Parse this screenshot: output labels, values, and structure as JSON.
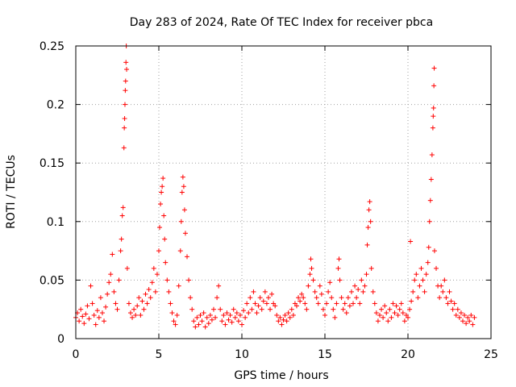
{
  "chart_data": {
    "type": "scatter",
    "title": "Day 283 of 2024, Rate Of TEC Index for receiver pbca",
    "xlabel": "GPS time / hours",
    "ylabel": "ROTI / TECUs",
    "xlim": [
      0,
      25
    ],
    "ylim": [
      0,
      0.25
    ],
    "x_ticks": [
      0,
      5,
      10,
      15,
      20,
      25
    ],
    "y_ticks": [
      0,
      0.05,
      0.1,
      0.15,
      0.2,
      0.25
    ],
    "x_tick_labels": [
      "0",
      "5",
      "10",
      "15",
      "20",
      "25"
    ],
    "y_tick_labels": [
      "0",
      "0.05",
      "0.1",
      "0.15",
      "0.2",
      "0.25"
    ],
    "grid": true,
    "marker": "plus",
    "color": "#ff0000",
    "series": [
      {
        "name": "ROTI",
        "points": [
          [
            0.0,
            0.018
          ],
          [
            0.1,
            0.022
          ],
          [
            0.2,
            0.015
          ],
          [
            0.3,
            0.025
          ],
          [
            0.4,
            0.019
          ],
          [
            0.5,
            0.013
          ],
          [
            0.6,
            0.021
          ],
          [
            0.7,
            0.028
          ],
          [
            0.8,
            0.017
          ],
          [
            0.9,
            0.045
          ],
          [
            1.0,
            0.03
          ],
          [
            1.1,
            0.02
          ],
          [
            1.2,
            0.012
          ],
          [
            1.3,
            0.024
          ],
          [
            1.4,
            0.018
          ],
          [
            1.5,
            0.035
          ],
          [
            1.6,
            0.022
          ],
          [
            1.7,
            0.015
          ],
          [
            1.8,
            0.027
          ],
          [
            1.9,
            0.038
          ],
          [
            2.0,
            0.048
          ],
          [
            2.1,
            0.055
          ],
          [
            2.2,
            0.072
          ],
          [
            2.3,
            0.04
          ],
          [
            2.4,
            0.03
          ],
          [
            2.5,
            0.025
          ],
          [
            2.6,
            0.05
          ],
          [
            2.7,
            0.075
          ],
          [
            2.75,
            0.085
          ],
          [
            2.8,
            0.105
          ],
          [
            2.85,
            0.112
          ],
          [
            2.9,
            0.163
          ],
          [
            2.92,
            0.18
          ],
          [
            2.94,
            0.188
          ],
          [
            2.96,
            0.2
          ],
          [
            2.98,
            0.212
          ],
          [
            3.0,
            0.22
          ],
          [
            3.02,
            0.236
          ],
          [
            3.04,
            0.25
          ],
          [
            3.06,
            0.23
          ],
          [
            3.1,
            0.06
          ],
          [
            3.2,
            0.03
          ],
          [
            3.3,
            0.022
          ],
          [
            3.4,
            0.018
          ],
          [
            3.5,
            0.025
          ],
          [
            3.6,
            0.02
          ],
          [
            3.7,
            0.028
          ],
          [
            3.8,
            0.035
          ],
          [
            3.9,
            0.02
          ],
          [
            4.0,
            0.032
          ],
          [
            4.1,
            0.025
          ],
          [
            4.2,
            0.038
          ],
          [
            4.3,
            0.03
          ],
          [
            4.4,
            0.042
          ],
          [
            4.5,
            0.035
          ],
          [
            4.6,
            0.048
          ],
          [
            4.7,
            0.06
          ],
          [
            4.8,
            0.04
          ],
          [
            4.9,
            0.055
          ],
          [
            5.0,
            0.075
          ],
          [
            5.05,
            0.095
          ],
          [
            5.1,
            0.115
          ],
          [
            5.15,
            0.125
          ],
          [
            5.2,
            0.13
          ],
          [
            5.25,
            0.137
          ],
          [
            5.3,
            0.105
          ],
          [
            5.35,
            0.085
          ],
          [
            5.4,
            0.065
          ],
          [
            5.5,
            0.05
          ],
          [
            5.6,
            0.04
          ],
          [
            5.7,
            0.03
          ],
          [
            5.8,
            0.022
          ],
          [
            5.9,
            0.015
          ],
          [
            6.0,
            0.012
          ],
          [
            6.1,
            0.02
          ],
          [
            6.2,
            0.045
          ],
          [
            6.3,
            0.075
          ],
          [
            6.35,
            0.1
          ],
          [
            6.4,
            0.125
          ],
          [
            6.45,
            0.138
          ],
          [
            6.5,
            0.13
          ],
          [
            6.55,
            0.11
          ],
          [
            6.6,
            0.09
          ],
          [
            6.7,
            0.07
          ],
          [
            6.8,
            0.05
          ],
          [
            6.9,
            0.035
          ],
          [
            7.0,
            0.025
          ],
          [
            7.1,
            0.015
          ],
          [
            7.2,
            0.01
          ],
          [
            7.3,
            0.018
          ],
          [
            7.4,
            0.012
          ],
          [
            7.5,
            0.02
          ],
          [
            7.6,
            0.015
          ],
          [
            7.7,
            0.022
          ],
          [
            7.8,
            0.01
          ],
          [
            7.9,
            0.018
          ],
          [
            8.0,
            0.013
          ],
          [
            8.1,
            0.02
          ],
          [
            8.2,
            0.016
          ],
          [
            8.3,
            0.025
          ],
          [
            8.4,
            0.018
          ],
          [
            8.5,
            0.035
          ],
          [
            8.6,
            0.045
          ],
          [
            8.7,
            0.025
          ],
          [
            8.8,
            0.015
          ],
          [
            8.9,
            0.02
          ],
          [
            9.0,
            0.012
          ],
          [
            9.1,
            0.022
          ],
          [
            9.2,
            0.016
          ],
          [
            9.3,
            0.02
          ],
          [
            9.4,
            0.014
          ],
          [
            9.5,
            0.025
          ],
          [
            9.6,
            0.018
          ],
          [
            9.7,
            0.022
          ],
          [
            9.8,
            0.015
          ],
          [
            9.9,
            0.02
          ],
          [
            10.0,
            0.012
          ],
          [
            10.1,
            0.024
          ],
          [
            10.2,
            0.018
          ],
          [
            10.3,
            0.03
          ],
          [
            10.4,
            0.022
          ],
          [
            10.5,
            0.035
          ],
          [
            10.6,
            0.025
          ],
          [
            10.7,
            0.04
          ],
          [
            10.8,
            0.03
          ],
          [
            10.9,
            0.022
          ],
          [
            11.0,
            0.028
          ],
          [
            11.1,
            0.035
          ],
          [
            11.2,
            0.025
          ],
          [
            11.3,
            0.032
          ],
          [
            11.4,
            0.04
          ],
          [
            11.5,
            0.03
          ],
          [
            11.6,
            0.035
          ],
          [
            11.7,
            0.025
          ],
          [
            11.8,
            0.038
          ],
          [
            11.9,
            0.03
          ],
          [
            12.0,
            0.028
          ],
          [
            12.1,
            0.02
          ],
          [
            12.2,
            0.015
          ],
          [
            12.3,
            0.018
          ],
          [
            12.4,
            0.012
          ],
          [
            12.5,
            0.016
          ],
          [
            12.6,
            0.02
          ],
          [
            12.7,
            0.015
          ],
          [
            12.8,
            0.022
          ],
          [
            12.9,
            0.018
          ],
          [
            13.0,
            0.025
          ],
          [
            13.1,
            0.02
          ],
          [
            13.2,
            0.03
          ],
          [
            13.3,
            0.028
          ],
          [
            13.4,
            0.035
          ],
          [
            13.5,
            0.032
          ],
          [
            13.6,
            0.038
          ],
          [
            13.7,
            0.035
          ],
          [
            13.8,
            0.03
          ],
          [
            13.9,
            0.025
          ],
          [
            14.0,
            0.045
          ],
          [
            14.1,
            0.055
          ],
          [
            14.15,
            0.068
          ],
          [
            14.2,
            0.06
          ],
          [
            14.3,
            0.05
          ],
          [
            14.4,
            0.04
          ],
          [
            14.5,
            0.035
          ],
          [
            14.6,
            0.03
          ],
          [
            14.7,
            0.045
          ],
          [
            14.8,
            0.038
          ],
          [
            14.9,
            0.025
          ],
          [
            15.0,
            0.02
          ],
          [
            15.1,
            0.03
          ],
          [
            15.2,
            0.04
          ],
          [
            15.3,
            0.048
          ],
          [
            15.4,
            0.035
          ],
          [
            15.5,
            0.025
          ],
          [
            15.6,
            0.018
          ],
          [
            15.7,
            0.03
          ],
          [
            15.8,
            0.06
          ],
          [
            15.85,
            0.068
          ],
          [
            15.9,
            0.05
          ],
          [
            16.0,
            0.035
          ],
          [
            16.1,
            0.025
          ],
          [
            16.2,
            0.03
          ],
          [
            16.3,
            0.022
          ],
          [
            16.4,
            0.035
          ],
          [
            16.5,
            0.028
          ],
          [
            16.6,
            0.04
          ],
          [
            16.7,
            0.03
          ],
          [
            16.8,
            0.045
          ],
          [
            16.9,
            0.035
          ],
          [
            17.0,
            0.042
          ],
          [
            17.1,
            0.03
          ],
          [
            17.2,
            0.05
          ],
          [
            17.3,
            0.04
          ],
          [
            17.4,
            0.045
          ],
          [
            17.5,
            0.055
          ],
          [
            17.55,
            0.08
          ],
          [
            17.6,
            0.095
          ],
          [
            17.65,
            0.11
          ],
          [
            17.7,
            0.117
          ],
          [
            17.75,
            0.1
          ],
          [
            17.8,
            0.06
          ],
          [
            17.9,
            0.04
          ],
          [
            18.0,
            0.03
          ],
          [
            18.1,
            0.022
          ],
          [
            18.2,
            0.015
          ],
          [
            18.3,
            0.02
          ],
          [
            18.4,
            0.025
          ],
          [
            18.5,
            0.018
          ],
          [
            18.6,
            0.028
          ],
          [
            18.7,
            0.022
          ],
          [
            18.8,
            0.015
          ],
          [
            18.9,
            0.025
          ],
          [
            19.0,
            0.018
          ],
          [
            19.1,
            0.03
          ],
          [
            19.2,
            0.022
          ],
          [
            19.3,
            0.028
          ],
          [
            19.4,
            0.02
          ],
          [
            19.5,
            0.025
          ],
          [
            19.6,
            0.03
          ],
          [
            19.7,
            0.022
          ],
          [
            19.8,
            0.015
          ],
          [
            19.9,
            0.02
          ],
          [
            20.0,
            0.018
          ],
          [
            20.1,
            0.025
          ],
          [
            20.15,
            0.083
          ],
          [
            20.2,
            0.032
          ],
          [
            20.3,
            0.04
          ],
          [
            20.4,
            0.05
          ],
          [
            20.5,
            0.055
          ],
          [
            20.6,
            0.035
          ],
          [
            20.7,
            0.045
          ],
          [
            20.8,
            0.06
          ],
          [
            20.9,
            0.05
          ],
          [
            21.0,
            0.04
          ],
          [
            21.1,
            0.055
          ],
          [
            21.2,
            0.065
          ],
          [
            21.25,
            0.078
          ],
          [
            21.3,
            0.1
          ],
          [
            21.35,
            0.118
          ],
          [
            21.4,
            0.136
          ],
          [
            21.45,
            0.157
          ],
          [
            21.5,
            0.18
          ],
          [
            21.52,
            0.19
          ],
          [
            21.54,
            0.197
          ],
          [
            21.56,
            0.216
          ],
          [
            21.58,
            0.231
          ],
          [
            21.6,
            0.075
          ],
          [
            21.7,
            0.06
          ],
          [
            21.8,
            0.045
          ],
          [
            21.9,
            0.035
          ],
          [
            22.0,
            0.045
          ],
          [
            22.1,
            0.04
          ],
          [
            22.2,
            0.05
          ],
          [
            22.3,
            0.035
          ],
          [
            22.4,
            0.03
          ],
          [
            22.5,
            0.04
          ],
          [
            22.6,
            0.032
          ],
          [
            22.7,
            0.025
          ],
          [
            22.8,
            0.03
          ],
          [
            22.9,
            0.02
          ],
          [
            23.0,
            0.025
          ],
          [
            23.1,
            0.018
          ],
          [
            23.2,
            0.022
          ],
          [
            23.3,
            0.015
          ],
          [
            23.4,
            0.02
          ],
          [
            23.5,
            0.013
          ],
          [
            23.6,
            0.018
          ],
          [
            23.7,
            0.015
          ],
          [
            23.8,
            0.02
          ],
          [
            23.9,
            0.012
          ],
          [
            24.0,
            0.018
          ]
        ]
      }
    ]
  }
}
